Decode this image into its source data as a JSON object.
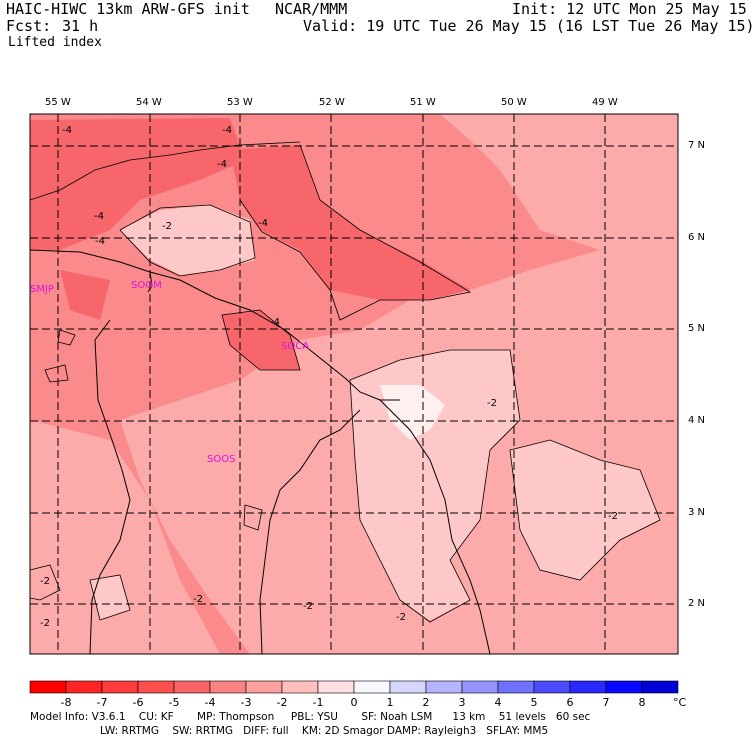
{
  "header": {
    "model": "HAIC-HIWC 13km ARW-GFS init",
    "org": "NCAR/MMM",
    "init": "Init: 12 UTC Mon 25 May 15",
    "fcst_label": "Fcst:",
    "fcst_value": "31 h",
    "valid": "Valid: 19 UTC Tue 26 May 15 (16 LST Tue 26 May 15)",
    "field": "Lifted index"
  },
  "map": {
    "lon_labels": [
      "55 W",
      "54 W",
      "53 W",
      "52 W",
      "51 W",
      "50 W",
      "49 W"
    ],
    "lat_labels": [
      "7 N",
      "6 N",
      "5 N",
      "4 N",
      "3 N",
      "2 N"
    ],
    "stations": [
      "SMJP",
      "SOCA",
      "SOOM",
      "SOOS"
    ],
    "contour_labels": [
      "-4",
      "-4",
      "-4",
      "-4",
      "-4",
      "-4",
      "-2",
      "-4",
      "-2",
      "-2",
      "-2",
      "-2",
      "-2",
      "-2",
      "-2"
    ],
    "colors": {
      "fill_deep": "#f6666b",
      "fill_mid": "#fb8a8c",
      "fill_light": "#fdaaab",
      "fill_pale": "#ffc8c8",
      "fill_white": "#fff0f0",
      "station": "#e010e0"
    }
  },
  "colorbar": {
    "ticks": [
      "-8",
      "-7",
      "-6",
      "-5",
      "-4",
      "-3",
      "-2",
      "-1",
      "0",
      "1",
      "2",
      "3",
      "4",
      "5",
      "6",
      "7",
      "8"
    ],
    "unit": "°C",
    "colors": [
      "#ff0000",
      "#ff2424",
      "#ff3c3c",
      "#fe4e4e",
      "#f96466",
      "#fb8284",
      "#fd9e9f",
      "#ffbfbf",
      "#ffdfdf",
      "#f8f8ff",
      "#d6d6ff",
      "#b4b4ff",
      "#9494ff",
      "#7070ff",
      "#4c4cff",
      "#2828ff",
      "#0808ff",
      "#0000d8"
    ]
  },
  "footer": {
    "line1": "Model Info: V3.6.1    CU: KF       MP: Thompson     PBL: YSU       SF: Noah LSM      13 km    51 levels   60 sec",
    "line2": "LW: RRTMG    SW: RRTMG   DIFF: full    KM: 2D Smagor DAMP: Rayleigh3   SFLAY: MM5"
  }
}
